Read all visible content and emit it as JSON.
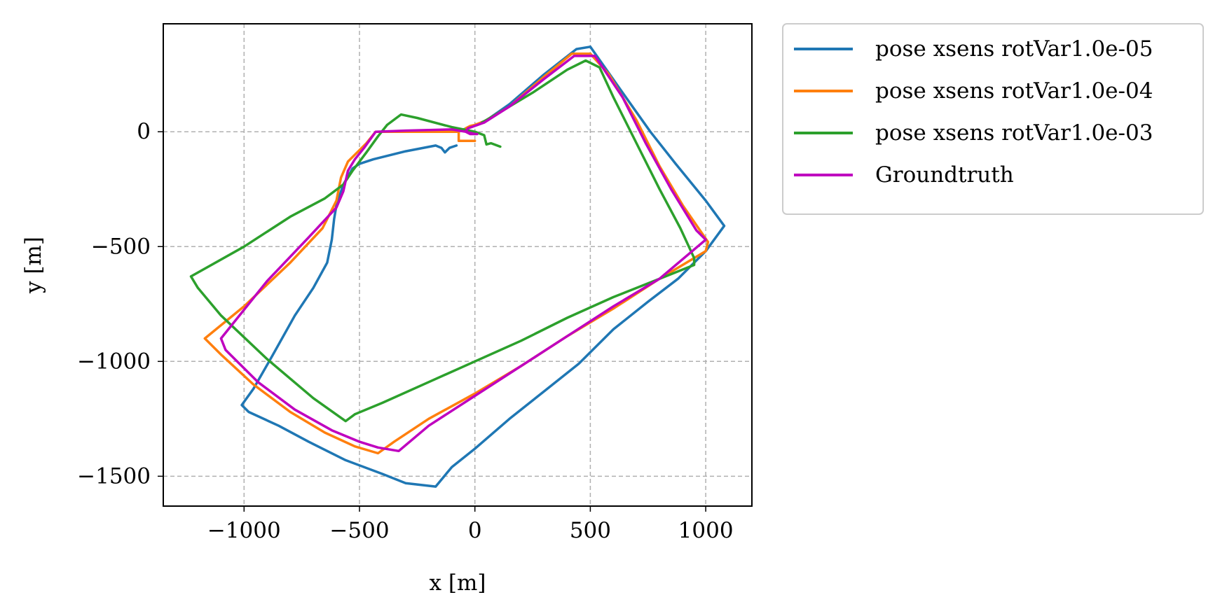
{
  "chart_data": {
    "type": "line",
    "title": "",
    "xlabel": "x [m]",
    "ylabel": "y [m]",
    "xlim": [
      -1350,
      1200
    ],
    "ylim": [
      -1630,
      470
    ],
    "xticks": [
      {
        "value": -1000,
        "label": "−1000"
      },
      {
        "value": -500,
        "label": "−500"
      },
      {
        "value": 0,
        "label": "0"
      },
      {
        "value": 500,
        "label": "500"
      },
      {
        "value": 1000,
        "label": "1000"
      }
    ],
    "yticks": [
      {
        "value": 0,
        "label": "0"
      },
      {
        "value": -500,
        "label": "−500"
      },
      {
        "value": -1000,
        "label": "−1000"
      },
      {
        "value": -1500,
        "label": "−1500"
      }
    ],
    "grid": true,
    "legend_position": "outside-top-right",
    "series": [
      {
        "name": "pose xsens rotVar1.0e-05",
        "color": "#1f77b4",
        "points": [
          [
            -80,
            -60
          ],
          [
            -110,
            -70
          ],
          [
            -130,
            -90
          ],
          [
            -145,
            -70
          ],
          [
            -170,
            -60
          ],
          [
            -300,
            -85
          ],
          [
            -440,
            -120
          ],
          [
            -500,
            -140
          ],
          [
            -530,
            -160
          ],
          [
            -570,
            -230
          ],
          [
            -600,
            -320
          ],
          [
            -610,
            -380
          ],
          [
            -620,
            -470
          ],
          [
            -640,
            -570
          ],
          [
            -700,
            -680
          ],
          [
            -780,
            -800
          ],
          [
            -880,
            -980
          ],
          [
            -960,
            -1120
          ],
          [
            -1010,
            -1190
          ],
          [
            -980,
            -1220
          ],
          [
            -850,
            -1280
          ],
          [
            -720,
            -1350
          ],
          [
            -560,
            -1430
          ],
          [
            -400,
            -1490
          ],
          [
            -300,
            -1530
          ],
          [
            -170,
            -1545
          ],
          [
            -100,
            -1460
          ],
          [
            0,
            -1380
          ],
          [
            150,
            -1250
          ],
          [
            300,
            -1130
          ],
          [
            450,
            -1010
          ],
          [
            600,
            -860
          ],
          [
            750,
            -740
          ],
          [
            880,
            -640
          ],
          [
            1000,
            -520
          ],
          [
            1080,
            -410
          ],
          [
            1000,
            -300
          ],
          [
            870,
            -140
          ],
          [
            760,
            0
          ],
          [
            640,
            170
          ],
          [
            500,
            370
          ],
          [
            440,
            360
          ],
          [
            300,
            250
          ],
          [
            150,
            120
          ],
          [
            50,
            50
          ],
          [
            -20,
            20
          ],
          [
            -50,
            10
          ]
        ]
      },
      {
        "name": "pose xsens rotVar1.0e-04",
        "color": "#ff7f0e",
        "points": [
          [
            0,
            -40
          ],
          [
            -70,
            -40
          ],
          [
            -70,
            0
          ],
          [
            -300,
            0
          ],
          [
            -430,
            0
          ],
          [
            -470,
            -50
          ],
          [
            -550,
            -130
          ],
          [
            -580,
            -200
          ],
          [
            -600,
            -300
          ],
          [
            -660,
            -420
          ],
          [
            -800,
            -570
          ],
          [
            -1000,
            -760
          ],
          [
            -1170,
            -900
          ],
          [
            -1100,
            -970
          ],
          [
            -960,
            -1100
          ],
          [
            -800,
            -1220
          ],
          [
            -650,
            -1310
          ],
          [
            -520,
            -1370
          ],
          [
            -420,
            -1400
          ],
          [
            -350,
            -1350
          ],
          [
            -200,
            -1250
          ],
          [
            0,
            -1140
          ],
          [
            200,
            -1020
          ],
          [
            400,
            -890
          ],
          [
            600,
            -770
          ],
          [
            800,
            -640
          ],
          [
            1000,
            -520
          ],
          [
            1010,
            -480
          ],
          [
            900,
            -320
          ],
          [
            800,
            -150
          ],
          [
            700,
            50
          ],
          [
            580,
            250
          ],
          [
            500,
            340
          ],
          [
            420,
            340
          ],
          [
            300,
            240
          ],
          [
            150,
            110
          ],
          [
            40,
            45
          ],
          [
            0,
            30
          ],
          [
            -20,
            25
          ],
          [
            -40,
            15
          ]
        ]
      },
      {
        "name": "pose xsens rotVar1.0e-03",
        "color": "#2ca02c",
        "points": [
          [
            110,
            -65
          ],
          [
            70,
            -50
          ],
          [
            50,
            -55
          ],
          [
            40,
            -15
          ],
          [
            0,
            0
          ],
          [
            -100,
            20
          ],
          [
            -250,
            60
          ],
          [
            -320,
            75
          ],
          [
            -340,
            60
          ],
          [
            -380,
            30
          ],
          [
            -420,
            -20
          ],
          [
            -470,
            -90
          ],
          [
            -530,
            -170
          ],
          [
            -570,
            -230
          ],
          [
            -650,
            -290
          ],
          [
            -800,
            -370
          ],
          [
            -1000,
            -500
          ],
          [
            -1230,
            -630
          ],
          [
            -1200,
            -680
          ],
          [
            -1100,
            -800
          ],
          [
            -900,
            -990
          ],
          [
            -700,
            -1160
          ],
          [
            -560,
            -1260
          ],
          [
            -520,
            -1230
          ],
          [
            -400,
            -1180
          ],
          [
            -200,
            -1090
          ],
          [
            0,
            -1000
          ],
          [
            200,
            -910
          ],
          [
            400,
            -810
          ],
          [
            600,
            -720
          ],
          [
            800,
            -640
          ],
          [
            950,
            -580
          ],
          [
            950,
            -550
          ],
          [
            890,
            -420
          ],
          [
            800,
            -250
          ],
          [
            700,
            -50
          ],
          [
            600,
            150
          ],
          [
            540,
            280
          ],
          [
            480,
            310
          ],
          [
            400,
            270
          ],
          [
            250,
            170
          ],
          [
            100,
            80
          ],
          [
            30,
            40
          ]
        ]
      },
      {
        "name": "Groundtruth",
        "color": "#bf00bf",
        "points": [
          [
            0,
            -10
          ],
          [
            -40,
            0
          ],
          [
            -100,
            10
          ],
          [
            -300,
            5
          ],
          [
            -430,
            0
          ],
          [
            -480,
            -70
          ],
          [
            -520,
            -120
          ],
          [
            -550,
            -170
          ],
          [
            -570,
            -260
          ],
          [
            -600,
            -330
          ],
          [
            -720,
            -460
          ],
          [
            -900,
            -650
          ],
          [
            -1100,
            -900
          ],
          [
            -1080,
            -950
          ],
          [
            -940,
            -1090
          ],
          [
            -780,
            -1210
          ],
          [
            -620,
            -1300
          ],
          [
            -500,
            -1350
          ],
          [
            -420,
            -1375
          ],
          [
            -330,
            -1390
          ],
          [
            -200,
            -1280
          ],
          [
            0,
            -1150
          ],
          [
            200,
            -1020
          ],
          [
            400,
            -890
          ],
          [
            600,
            -760
          ],
          [
            800,
            -640
          ],
          [
            1000,
            -470
          ],
          [
            960,
            -430
          ],
          [
            850,
            -250
          ],
          [
            740,
            -50
          ],
          [
            640,
            150
          ],
          [
            520,
            330
          ],
          [
            430,
            330
          ],
          [
            300,
            230
          ],
          [
            150,
            110
          ],
          [
            40,
            40
          ],
          [
            -30,
            15
          ],
          [
            -40,
            0
          ],
          [
            -20,
            -10
          ],
          [
            10,
            -10
          ]
        ]
      }
    ]
  }
}
